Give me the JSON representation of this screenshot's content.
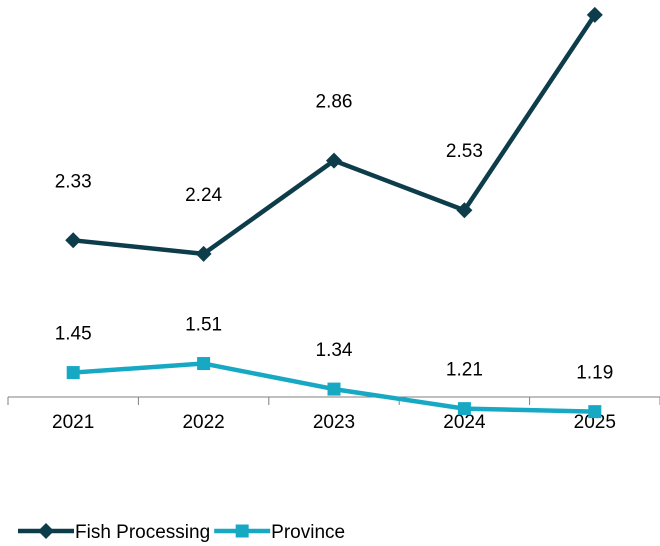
{
  "chart_data": {
    "type": "line",
    "categories": [
      "2021",
      "2022",
      "2023",
      "2024",
      "2025"
    ],
    "series": [
      {
        "name": "Fish Processing",
        "values": [
          2.33,
          2.24,
          2.86,
          2.53,
          3.83
        ],
        "color": "#0d3d4a",
        "marker": "diamond"
      },
      {
        "name": "Province",
        "values": [
          1.45,
          1.51,
          1.34,
          1.21,
          1.19
        ],
        "color": "#17a9c4",
        "marker": "square"
      }
    ],
    "data_labels": true,
    "grid": false,
    "legend_position": "bottom-left"
  }
}
